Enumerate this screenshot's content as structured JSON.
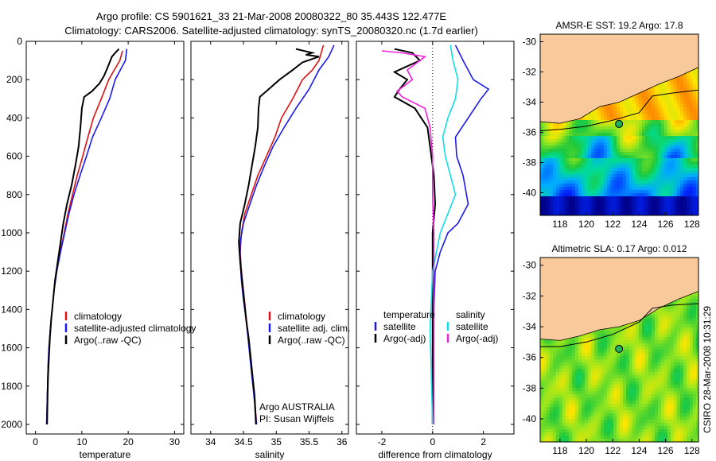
{
  "figure": {
    "title_line1": "Argo profile: CS 5901621_33 21-Mar-2008 20080322_80 35.443S 122.477E",
    "title_line2": "Climatology: CARS2006. Satellite-adjusted climatology: synTS_20080320.nc (1.7d earlier)",
    "side_label": "CSIRO 28-Mar-2008 10:31:29",
    "credit_line1": "Argo AUSTRALIA",
    "credit_line2": "PI: Susan Wijffels"
  },
  "colors": {
    "red": "#dd1111",
    "blue": "#1a1aee",
    "black": "#000000",
    "cyan": "#11dde6",
    "magenta": "#ee22dd",
    "land": "#f7c99b"
  },
  "chart_data": [
    {
      "type": "line",
      "panel": "temperature",
      "xlabel": "temperature",
      "ylabel": "",
      "xlim": [
        -2,
        32
      ],
      "ylim": [
        2050,
        0
      ],
      "xticks": [
        "0",
        "10",
        "20",
        "30"
      ],
      "yticks": [
        "0",
        "200",
        "400",
        "600",
        "800",
        "1000",
        "1200",
        "1400",
        "1600",
        "1800",
        "2000"
      ],
      "legend_placement": "lower-center",
      "series": [
        {
          "name": "climatology",
          "color": "red",
          "points": [
            [
              18.8,
              50
            ],
            [
              18.2,
              100
            ],
            [
              17.0,
              150
            ],
            [
              15.8,
              200
            ],
            [
              14.2,
              300
            ],
            [
              12.5,
              400
            ],
            [
              11.3,
              500
            ],
            [
              10.2,
              600
            ],
            [
              9.0,
              700
            ],
            [
              8.0,
              800
            ],
            [
              7.0,
              900
            ],
            [
              6.2,
              1000
            ],
            [
              5.3,
              1100
            ],
            [
              4.6,
              1200
            ],
            [
              4.0,
              1300
            ],
            [
              3.6,
              1400
            ],
            [
              3.2,
              1500
            ],
            [
              2.9,
              1600
            ],
            [
              2.7,
              1700
            ],
            [
              2.6,
              1800
            ],
            [
              2.5,
              1900
            ],
            [
              2.4,
              2000
            ]
          ]
        },
        {
          "name": "satellite-adjusted climatology",
          "color": "blue",
          "points": [
            [
              19.7,
              40
            ],
            [
              19.4,
              100
            ],
            [
              18.3,
              150
            ],
            [
              17.2,
              200
            ],
            [
              16.0,
              300
            ],
            [
              14.2,
              400
            ],
            [
              12.3,
              500
            ],
            [
              11.0,
              600
            ],
            [
              9.6,
              700
            ],
            [
              8.3,
              800
            ],
            [
              7.2,
              900
            ],
            [
              6.3,
              1000
            ],
            [
              5.4,
              1100
            ],
            [
              4.6,
              1200
            ],
            [
              4.0,
              1300
            ],
            [
              3.6,
              1400
            ],
            [
              3.2,
              1500
            ],
            [
              2.9,
              1600
            ],
            [
              2.7,
              1700
            ],
            [
              2.6,
              1800
            ],
            [
              2.5,
              1900
            ],
            [
              2.4,
              2000
            ]
          ]
        },
        {
          "name": "Argo(..raw -QC)",
          "color": "black",
          "points": [
            [
              18.0,
              40
            ],
            [
              17.2,
              60
            ],
            [
              16.5,
              80
            ],
            [
              15.5,
              140
            ],
            [
              14.8,
              180
            ],
            [
              13.8,
              220
            ],
            [
              12.2,
              260
            ],
            [
              10.5,
              290
            ],
            [
              10.0,
              350
            ],
            [
              9.7,
              450
            ],
            [
              9.3,
              550
            ],
            [
              8.6,
              650
            ],
            [
              7.8,
              750
            ],
            [
              6.8,
              850
            ],
            [
              6.0,
              950
            ],
            [
              5.4,
              1050
            ],
            [
              4.8,
              1150
            ],
            [
              4.2,
              1250
            ],
            [
              3.8,
              1350
            ],
            [
              3.4,
              1450
            ],
            [
              3.1,
              1550
            ],
            [
              2.9,
              1650
            ],
            [
              2.7,
              1750
            ],
            [
              2.6,
              1850
            ],
            [
              2.5,
              2000
            ]
          ]
        }
      ]
    },
    {
      "type": "line",
      "panel": "salinity",
      "xlabel": "salinity",
      "ylabel": "",
      "xlim": [
        33.7,
        36.1
      ],
      "ylim": [
        2050,
        0
      ],
      "xticks": [
        "34",
        "34.5",
        "35",
        "35.5",
        "36"
      ],
      "legend_placement": "lower-center",
      "series": [
        {
          "name": "climatology",
          "color": "red",
          "points": [
            [
              35.72,
              20
            ],
            [
              35.65,
              100
            ],
            [
              35.55,
              150
            ],
            [
              35.4,
              200
            ],
            [
              35.25,
              300
            ],
            [
              35.08,
              400
            ],
            [
              34.98,
              500
            ],
            [
              34.85,
              600
            ],
            [
              34.72,
              700
            ],
            [
              34.62,
              800
            ],
            [
              34.52,
              900
            ],
            [
              34.47,
              1000
            ],
            [
              34.45,
              1100
            ],
            [
              34.47,
              1200
            ],
            [
              34.5,
              1300
            ],
            [
              34.53,
              1400
            ],
            [
              34.56,
              1500
            ],
            [
              34.59,
              1600
            ],
            [
              34.62,
              1700
            ],
            [
              34.65,
              1800
            ],
            [
              34.68,
              1900
            ],
            [
              34.7,
              2000
            ]
          ]
        },
        {
          "name": "satellite adj. clim.",
          "color": "blue",
          "points": [
            [
              35.88,
              20
            ],
            [
              35.8,
              80
            ],
            [
              35.65,
              150
            ],
            [
              35.5,
              250
            ],
            [
              35.3,
              350
            ],
            [
              35.12,
              450
            ],
            [
              34.95,
              550
            ],
            [
              34.82,
              650
            ],
            [
              34.7,
              750
            ],
            [
              34.6,
              850
            ],
            [
              34.5,
              950
            ],
            [
              34.45,
              1050
            ],
            [
              34.45,
              1150
            ],
            [
              34.47,
              1250
            ],
            [
              34.5,
              1350
            ],
            [
              34.54,
              1450
            ],
            [
              34.57,
              1550
            ],
            [
              34.6,
              1650
            ],
            [
              34.63,
              1750
            ],
            [
              34.66,
              1850
            ],
            [
              34.7,
              2000
            ]
          ]
        },
        {
          "name": "Argo(..raw -QC)",
          "color": "black",
          "points": [
            [
              35.3,
              40
            ],
            [
              35.55,
              60
            ],
            [
              35.45,
              70
            ],
            [
              35.65,
              80
            ],
            [
              35.4,
              110
            ],
            [
              35.25,
              150
            ],
            [
              35.05,
              200
            ],
            [
              34.85,
              260
            ],
            [
              34.75,
              290
            ],
            [
              34.73,
              350
            ],
            [
              34.72,
              450
            ],
            [
              34.68,
              550
            ],
            [
              34.63,
              650
            ],
            [
              34.58,
              750
            ],
            [
              34.52,
              850
            ],
            [
              34.45,
              950
            ],
            [
              34.43,
              1050
            ],
            [
              34.45,
              1150
            ],
            [
              34.48,
              1250
            ],
            [
              34.51,
              1350
            ],
            [
              34.54,
              1450
            ],
            [
              34.58,
              1550
            ],
            [
              34.61,
              1650
            ],
            [
              34.64,
              1750
            ],
            [
              34.67,
              1850
            ],
            [
              34.69,
              2000
            ]
          ]
        }
      ]
    },
    {
      "type": "line",
      "panel": "difference",
      "xlabel": "difference from climatology",
      "ylabel": "",
      "xlim": [
        -3,
        3.2
      ],
      "ylim": [
        2050,
        0
      ],
      "xticks": [
        "-2",
        "0",
        "2"
      ],
      "zero_line": "dotted",
      "legend_placement": "lower-center",
      "legend_groups": [
        "temperature",
        "salinity"
      ],
      "series": [
        {
          "name": "satellite",
          "group": "temperature",
          "color": "blue",
          "points": [
            [
              0.9,
              20
            ],
            [
              1.2,
              100
            ],
            [
              1.6,
              200
            ],
            [
              2.2,
              250
            ],
            [
              1.9,
              300
            ],
            [
              1.4,
              400
            ],
            [
              0.9,
              500
            ],
            [
              0.95,
              600
            ],
            [
              1.2,
              700
            ],
            [
              1.4,
              850
            ],
            [
              1.0,
              950
            ],
            [
              0.6,
              1000
            ],
            [
              0.3,
              1100
            ],
            [
              0.1,
              1200
            ],
            [
              0.05,
              1400
            ],
            [
              0.0,
              2000
            ]
          ]
        },
        {
          "name": "Argo(-adj)",
          "group": "temperature",
          "color": "black",
          "points": [
            [
              -1.5,
              40
            ],
            [
              -0.8,
              60
            ],
            [
              -0.5,
              100
            ],
            [
              -1.5,
              160
            ],
            [
              -1.0,
              200
            ],
            [
              -1.3,
              250
            ],
            [
              -1.5,
              290
            ],
            [
              -0.7,
              350
            ],
            [
              -0.2,
              450
            ],
            [
              -0.05,
              600
            ],
            [
              0.05,
              700
            ],
            [
              0.1,
              850
            ],
            [
              0.0,
              1000
            ],
            [
              0.0,
              2000
            ]
          ]
        },
        {
          "name": "satellite",
          "group": "salinity",
          "color": "cyan",
          "points": [
            [
              0.7,
              20
            ],
            [
              0.8,
              100
            ],
            [
              1.0,
              200
            ],
            [
              0.9,
              300
            ],
            [
              0.6,
              400
            ],
            [
              0.4,
              500
            ],
            [
              0.5,
              600
            ],
            [
              0.7,
              700
            ],
            [
              0.9,
              800
            ],
            [
              0.6,
              900
            ],
            [
              0.3,
              1000
            ],
            [
              0.0,
              1200
            ],
            [
              -0.1,
              1500
            ],
            [
              0.0,
              2000
            ]
          ]
        },
        {
          "name": "Argo(-adj)",
          "group": "salinity",
          "color": "magenta",
          "points": [
            [
              -2.0,
              50
            ],
            [
              -1.2,
              60
            ],
            [
              -0.3,
              80
            ],
            [
              -0.5,
              100
            ],
            [
              -1.0,
              150
            ],
            [
              -0.8,
              200
            ],
            [
              -1.4,
              260
            ],
            [
              -1.2,
              290
            ],
            [
              -0.3,
              350
            ],
            [
              -0.1,
              450
            ],
            [
              0.0,
              600
            ],
            [
              0.0,
              800
            ],
            [
              0.05,
              1000
            ],
            [
              0.05,
              2000
            ]
          ]
        }
      ]
    },
    {
      "type": "heatmap",
      "panel": "sst-map",
      "title": "AMSR-E SST: 19.2 Argo: 17.8",
      "xlim": [
        116.5,
        128.5
      ],
      "ylim": [
        -41.5,
        -29.5
      ],
      "xticks": [
        "118",
        "120",
        "122",
        "124",
        "126",
        "128"
      ],
      "yticks": [
        "-30",
        "-32",
        "-34",
        "-36",
        "-38",
        "-40"
      ],
      "marker": {
        "lon": 122.477,
        "lat": -35.443
      },
      "coast": [
        [
          116.5,
          -35.3
        ],
        [
          118,
          -35.4
        ],
        [
          119.5,
          -35.1
        ],
        [
          121,
          -34.3
        ],
        [
          122.5,
          -34.0
        ],
        [
          124,
          -33.4
        ],
        [
          125.5,
          -32.8
        ],
        [
          127,
          -32.3
        ],
        [
          128.5,
          -31.7
        ]
      ],
      "front_line": [
        [
          116.5,
          -35.9
        ],
        [
          118,
          -35.8
        ],
        [
          120,
          -35.6
        ],
        [
          122,
          -35.2
        ],
        [
          124,
          -34.7
        ],
        [
          125,
          -33.6
        ],
        [
          126.5,
          -33.4
        ],
        [
          128.5,
          -33.2
        ]
      ]
    },
    {
      "type": "heatmap",
      "panel": "sla-map",
      "title": "Altimetric SLA: 0.17 Argo: 0.012",
      "xlim": [
        116.5,
        128.5
      ],
      "ylim": [
        -41.5,
        -29.5
      ],
      "xticks": [
        "118",
        "120",
        "122",
        "124",
        "126",
        "128"
      ],
      "yticks": [
        "-30",
        "-32",
        "-34",
        "-36",
        "-38",
        "-40"
      ],
      "marker": {
        "lon": 122.477,
        "lat": -35.443
      },
      "coast": [
        [
          116.5,
          -34.8
        ],
        [
          118,
          -34.9
        ],
        [
          119.5,
          -34.6
        ],
        [
          121,
          -34.2
        ],
        [
          122.5,
          -34.0
        ],
        [
          124,
          -33.6
        ],
        [
          125.5,
          -32.8
        ],
        [
          127,
          -32.2
        ],
        [
          128.5,
          -31.7
        ]
      ],
      "front_line": [
        [
          116.5,
          -35.3
        ],
        [
          118,
          -35.3
        ],
        [
          120,
          -35.0
        ],
        [
          122,
          -34.5
        ],
        [
          124,
          -33.7
        ],
        [
          125,
          -32.8
        ],
        [
          126.5,
          -32.6
        ],
        [
          128.5,
          -32.5
        ]
      ]
    }
  ]
}
